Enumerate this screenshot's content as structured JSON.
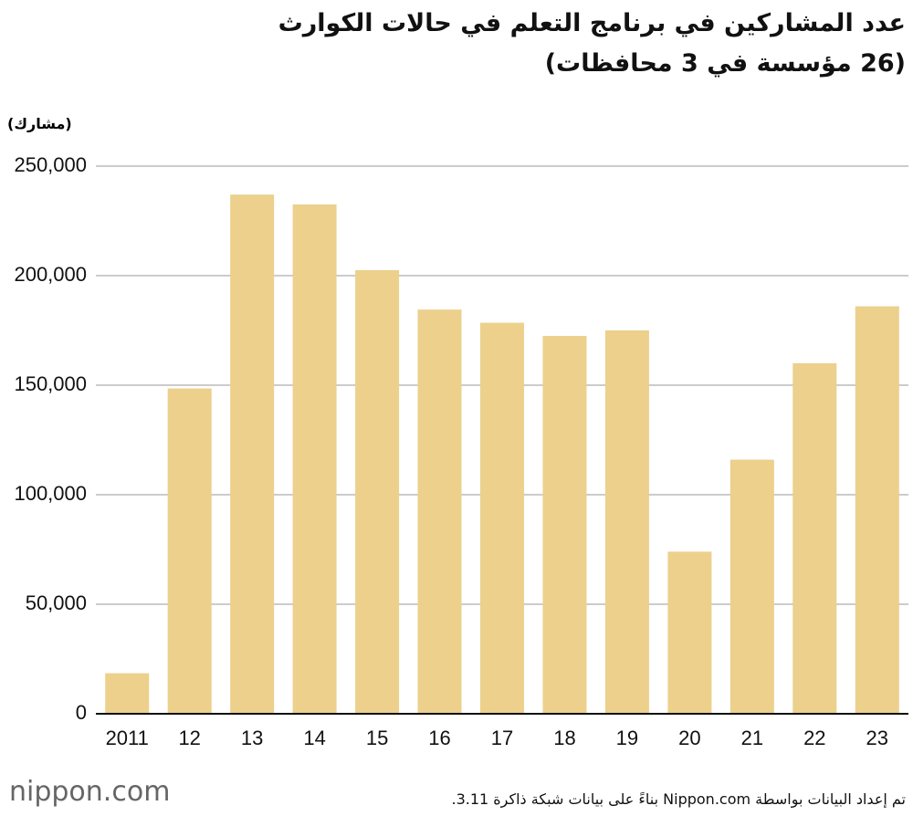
{
  "chart_data": {
    "type": "bar",
    "title": "عدد المشاركين في برنامج التعلم في حالات الكوارث",
    "subtitle": "(26 مؤسسة في 3 محافظات)",
    "y_label": "(مشارك)",
    "source": "تم إعداد البيانات بواسطة Nippon.com بناءً على بيانات شبكة ذاكرة 3.11.",
    "logo": "nippon.com",
    "categories": [
      "2011",
      "12",
      "13",
      "14",
      "15",
      "16",
      "17",
      "18",
      "19",
      "20",
      "21",
      "22",
      "23"
    ],
    "values": [
      18500,
      148500,
      237000,
      232500,
      202500,
      184500,
      178500,
      172500,
      175000,
      74000,
      116000,
      160000,
      186000
    ],
    "color": "#ecd08c",
    "ylim": [
      0,
      250000
    ],
    "yticks": [
      0,
      {
        "value": 50000,
        "label": "50,000"
      },
      {
        "value": 100000,
        "label": "100,000"
      },
      {
        "value": 150000,
        "label": "150,000"
      },
      {
        "value": 200000,
        "label": "200,000"
      },
      {
        "value": 250000,
        "label": "250,000"
      }
    ],
    "grid": true
  }
}
